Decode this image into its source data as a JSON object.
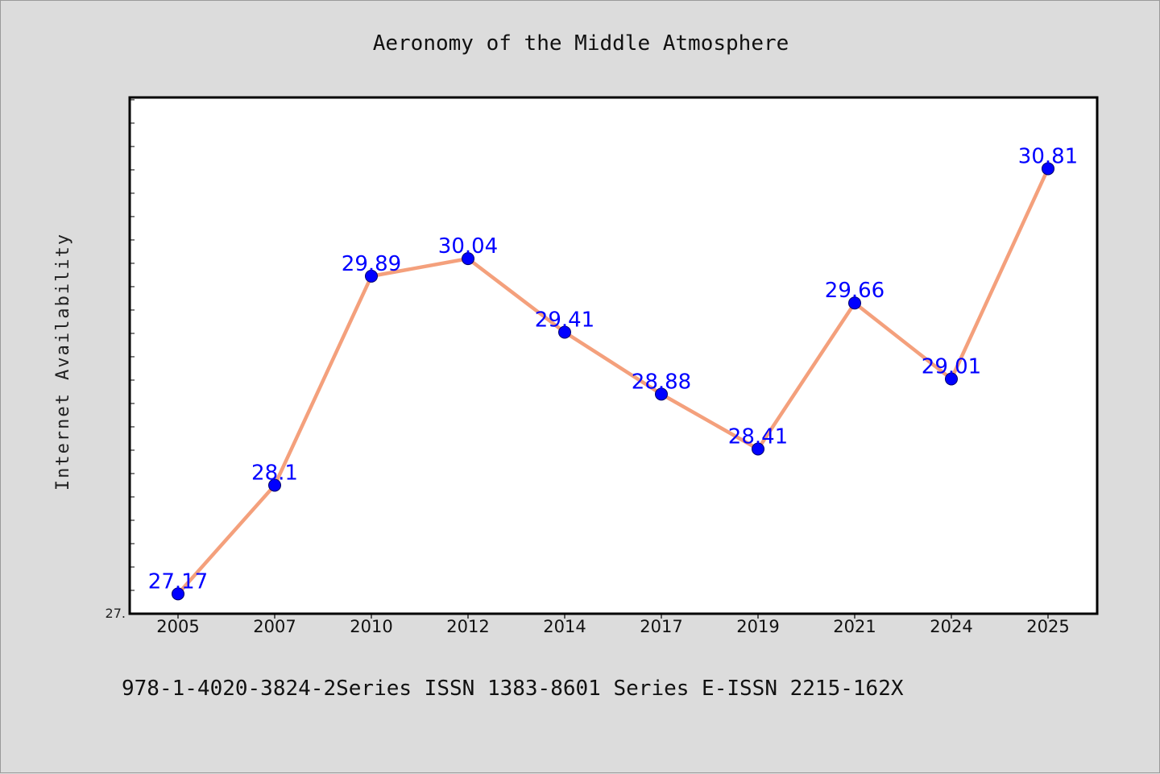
{
  "chart_data": {
    "type": "line",
    "title": "Aeronomy of the Middle Atmosphere",
    "xlabel": "",
    "ylabel": "Internet Availability",
    "categories": [
      "2005",
      "2007",
      "2010",
      "2012",
      "2014",
      "2017",
      "2019",
      "2021",
      "2024",
      "2025"
    ],
    "series": [
      {
        "values": [
          27.17,
          28.1,
          29.89,
          30.04,
          29.41,
          28.88,
          28.41,
          29.66,
          29.01,
          30.81
        ],
        "data_labels": [
          "27.17",
          "28.1",
          "29.89",
          "30.04",
          "29.41",
          "28.88",
          "28.41",
          "29.66",
          "29.01",
          "30.81"
        ]
      }
    ],
    "y_tick_label": "27.",
    "ylim": [
      27.0,
      31.42
    ],
    "grid": false,
    "legend": "none",
    "colors": {
      "line": "#f4a07c",
      "marker": "#0000ff",
      "data_label": "#0000ff",
      "background": "#dcdcdc",
      "plot_background": "#ffffff"
    }
  },
  "footer": {
    "text": "978-1-4020-3824-2Series ISSN 1383-8601 Series E-ISSN 2215-162X"
  }
}
